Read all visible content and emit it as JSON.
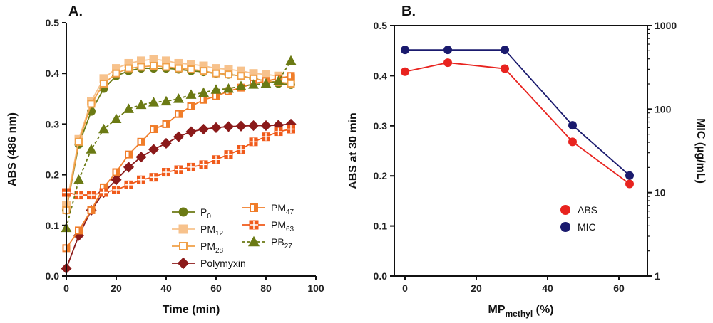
{
  "chart_data": [
    {
      "panel": "A.",
      "type": "line",
      "xlabel": "Time (min)",
      "ylabel": "ABS (486 nm)",
      "xlim": [
        0,
        100
      ],
      "ylim": [
        0.0,
        0.5
      ],
      "xticks": [
        0,
        20,
        40,
        60,
        80,
        100
      ],
      "yticks": [
        0.0,
        0.1,
        0.2,
        0.3,
        0.4,
        0.5
      ],
      "xtick_labels": [
        "0",
        "20",
        "40",
        "60",
        "80",
        "100"
      ],
      "ytick_labels": [
        "0.0",
        "0.1",
        "0.2",
        "0.3",
        "0.4",
        "0.5"
      ],
      "series": [
        {
          "name": "P0",
          "base": "P",
          "subscript": "0",
          "color": "#6b7a14",
          "marker": "circle",
          "fill": "solid",
          "dashed": false,
          "x": [
            0,
            5,
            10,
            15,
            20,
            25,
            30,
            35,
            40,
            45,
            50,
            55,
            60,
            65,
            70,
            75,
            80,
            85,
            90
          ],
          "y": [
            0.13,
            0.26,
            0.325,
            0.37,
            0.395,
            0.405,
            0.41,
            0.41,
            0.41,
            0.408,
            0.405,
            0.403,
            0.4,
            0.398,
            0.395,
            0.39,
            0.385,
            0.38,
            0.378
          ]
        },
        {
          "name": "PM12",
          "base": "PM",
          "subscript": "12",
          "color": "#f7c28c",
          "marker": "square",
          "fill": "solid",
          "dashed": false,
          "x": [
            0,
            5,
            10,
            15,
            20,
            25,
            30,
            35,
            40,
            45,
            50,
            55,
            60,
            65,
            70,
            75,
            80,
            85,
            90
          ],
          "y": [
            0.14,
            0.27,
            0.345,
            0.39,
            0.41,
            0.42,
            0.425,
            0.428,
            0.425,
            0.42,
            0.418,
            0.415,
            0.41,
            0.408,
            0.405,
            0.4,
            0.398,
            0.395,
            0.39
          ]
        },
        {
          "name": "PM28",
          "base": "PM",
          "subscript": "28",
          "color": "#f0a048",
          "marker": "square",
          "fill": "open",
          "dashed": false,
          "x": [
            0,
            5,
            10,
            15,
            20,
            25,
            30,
            35,
            40,
            45,
            50,
            55,
            60,
            65,
            70,
            75,
            80,
            85,
            90
          ],
          "y": [
            0.13,
            0.265,
            0.34,
            0.38,
            0.4,
            0.41,
            0.413,
            0.415,
            0.413,
            0.41,
            0.408,
            0.405,
            0.4,
            0.398,
            0.395,
            0.39,
            0.385,
            0.383,
            0.38
          ]
        },
        {
          "name": "Polymyxin",
          "base": "Polymyxin",
          "subscript": "",
          "color": "#8b1a1a",
          "marker": "diamond",
          "fill": "solid",
          "dashed": false,
          "x": [
            0,
            5,
            10,
            15,
            20,
            25,
            30,
            35,
            40,
            45,
            50,
            55,
            60,
            65,
            70,
            75,
            80,
            85,
            90
          ],
          "y": [
            0.015,
            0.08,
            0.13,
            0.165,
            0.19,
            0.215,
            0.235,
            0.25,
            0.262,
            0.275,
            0.285,
            0.29,
            0.293,
            0.295,
            0.296,
            0.297,
            0.297,
            0.298,
            0.3
          ]
        },
        {
          "name": "PM47",
          "base": "PM",
          "subscript": "47",
          "color": "#f07d2a",
          "marker": "square",
          "fill": "half",
          "dashed": false,
          "x": [
            0,
            5,
            10,
            15,
            20,
            25,
            30,
            35,
            40,
            45,
            50,
            55,
            60,
            65,
            70,
            75,
            80,
            85,
            90
          ],
          "y": [
            0.055,
            0.09,
            0.13,
            0.175,
            0.205,
            0.24,
            0.265,
            0.29,
            0.3,
            0.32,
            0.335,
            0.348,
            0.355,
            0.365,
            0.372,
            0.38,
            0.385,
            0.39,
            0.395
          ]
        },
        {
          "name": "PM63",
          "base": "PM",
          "subscript": "63",
          "color": "#f05a1a",
          "marker": "square",
          "fill": "split",
          "dashed": false,
          "x": [
            0,
            5,
            10,
            15,
            20,
            25,
            30,
            35,
            40,
            45,
            50,
            55,
            60,
            65,
            70,
            75,
            80,
            85,
            90
          ],
          "y": [
            0.165,
            0.16,
            0.16,
            0.165,
            0.17,
            0.18,
            0.19,
            0.195,
            0.205,
            0.21,
            0.215,
            0.22,
            0.23,
            0.24,
            0.25,
            0.265,
            0.275,
            0.285,
            0.29
          ]
        },
        {
          "name": "PB27",
          "base": "PB",
          "subscript": "27",
          "color": "#6b7a14",
          "marker": "triangle",
          "fill": "solid",
          "dashed": true,
          "x": [
            0,
            5,
            10,
            15,
            20,
            25,
            30,
            35,
            40,
            45,
            50,
            55,
            60,
            65,
            70,
            75,
            80,
            85,
            90
          ],
          "y": [
            0.095,
            0.19,
            0.25,
            0.29,
            0.31,
            0.33,
            0.338,
            0.343,
            0.345,
            0.35,
            0.358,
            0.362,
            0.368,
            0.37,
            0.375,
            0.378,
            0.38,
            0.385,
            0.425
          ]
        }
      ]
    },
    {
      "panel": "B.",
      "type": "line",
      "xlabel": "MP",
      "xlabel_sub": "methyl",
      "xlabel_suffix": " (%)",
      "ylabel": "ABS at 30 min",
      "ylabel_right": "MIC (µg/mL)",
      "xlim": [
        -3,
        68
      ],
      "ylim": [
        0.0,
        0.5
      ],
      "ylim_right_log": [
        1,
        1000
      ],
      "xticks": [
        0,
        20,
        40,
        60
      ],
      "yticks": [
        0.0,
        0.1,
        0.2,
        0.3,
        0.4,
        0.5
      ],
      "xtick_labels": [
        "0",
        "20",
        "40",
        "60"
      ],
      "ytick_labels": [
        "0.0",
        "0.1",
        "0.2",
        "0.3",
        "0.4",
        "0.5"
      ],
      "yticks_right": [
        1,
        10,
        100,
        1000
      ],
      "ytick_right_labels": [
        "1",
        "10",
        "100",
        "1000"
      ],
      "series": [
        {
          "name": "ABS",
          "color": "#e8231f",
          "axis": "left",
          "x": [
            0,
            12,
            28,
            47,
            63
          ],
          "y": [
            0.408,
            0.426,
            0.414,
            0.268,
            0.184
          ]
        },
        {
          "name": "MIC",
          "color": "#1a1a6e",
          "axis": "right",
          "x": [
            0,
            12,
            28,
            47,
            63
          ],
          "y": [
            512,
            512,
            512,
            64,
            16
          ]
        }
      ]
    }
  ]
}
